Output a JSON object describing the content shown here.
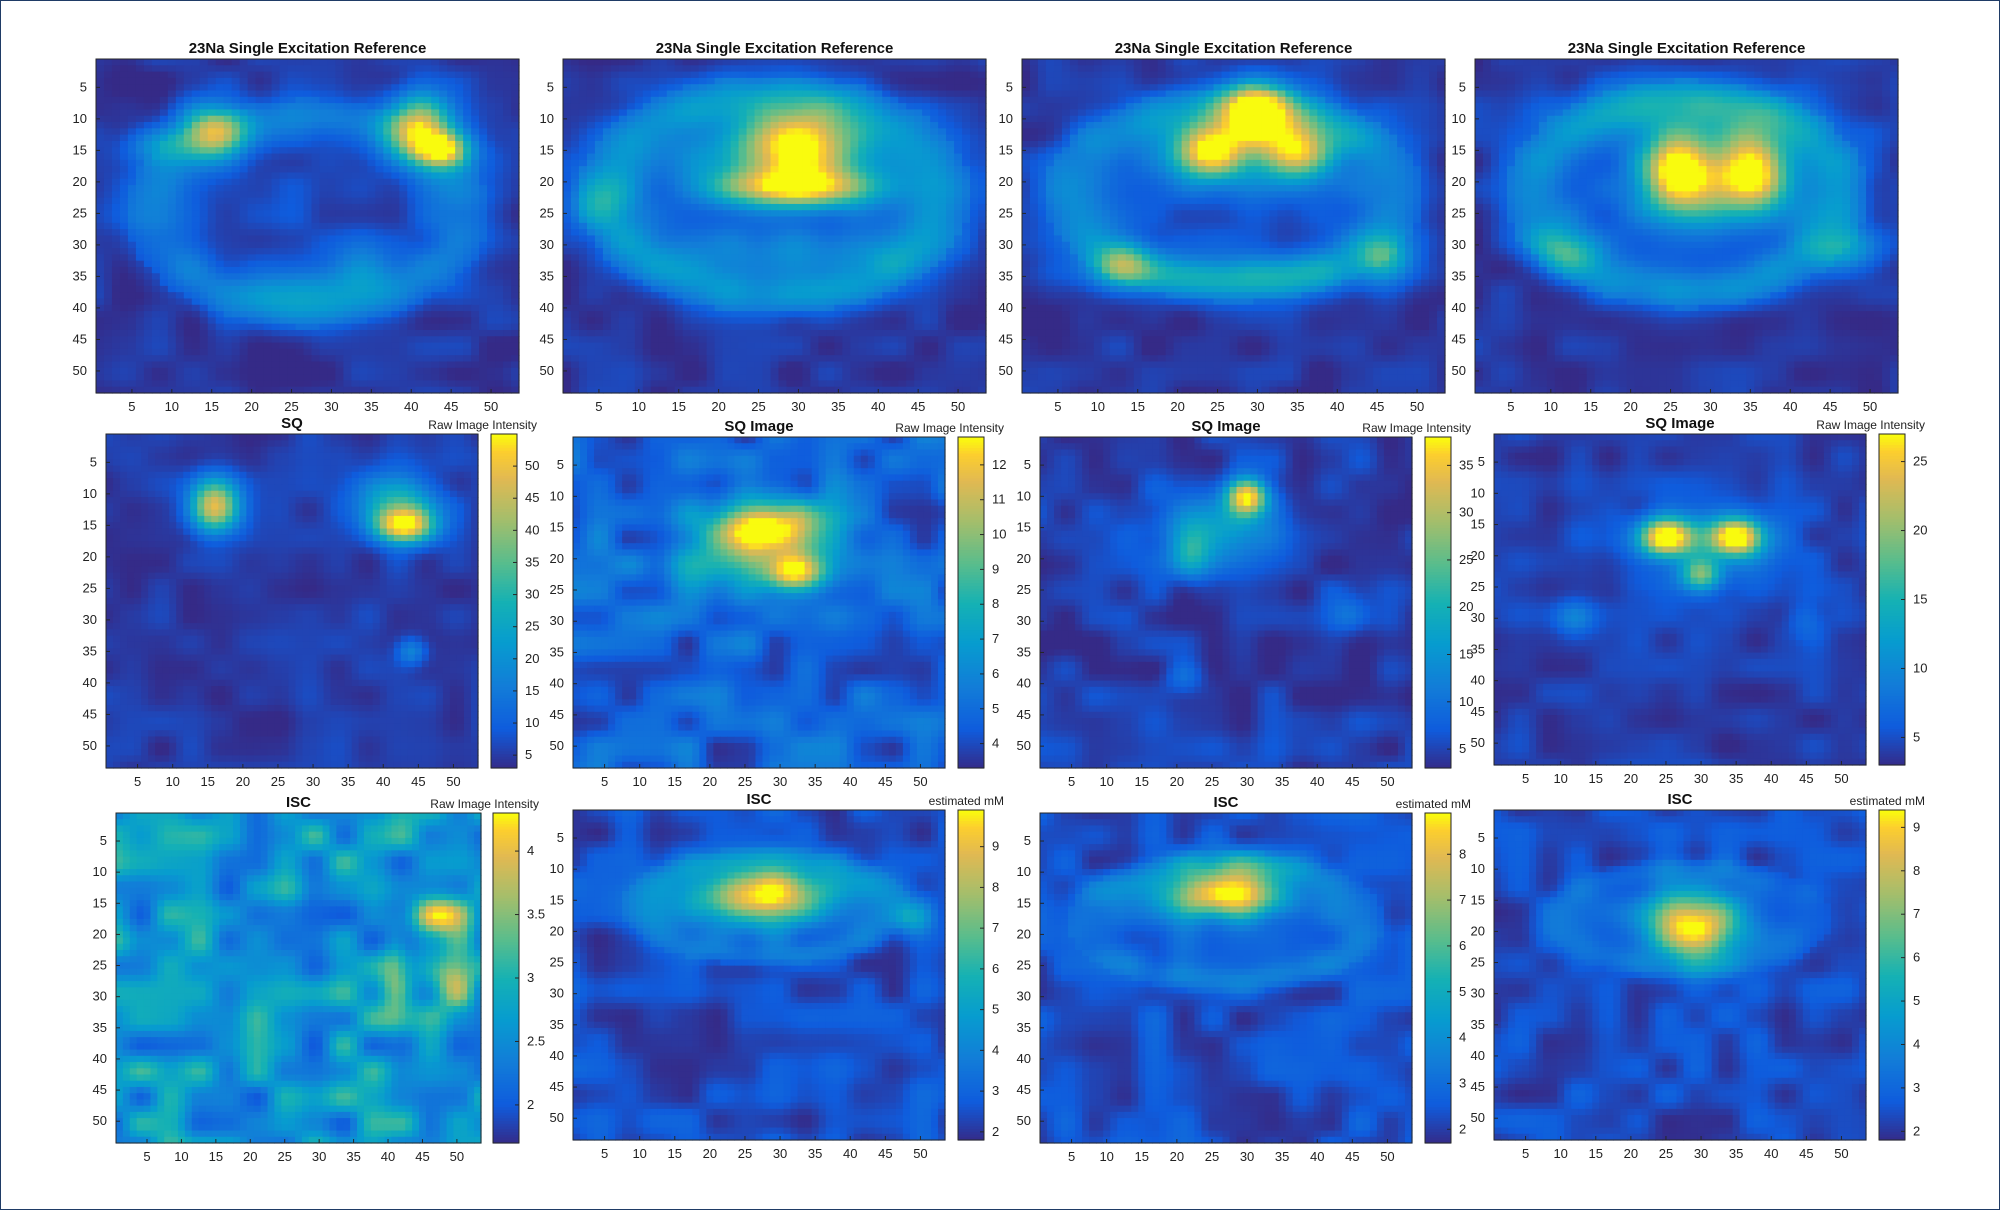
{
  "chart_data": [
    {
      "type": "heatmap",
      "title": "23Na Single Excitation Reference",
      "colorbar_label": "",
      "xticks": [
        5,
        10,
        15,
        20,
        25,
        30,
        35,
        40,
        45,
        50
      ],
      "yticks": [
        5,
        10,
        15,
        20,
        25,
        30,
        35,
        40,
        45,
        50
      ],
      "xlim": [
        1,
        53
      ],
      "ylim": [
        1,
        53
      ],
      "colormap": "parula"
    },
    {
      "type": "heatmap",
      "title": "23Na Single Excitation Reference",
      "colorbar_label": "",
      "xticks": [
        5,
        10,
        15,
        20,
        25,
        30,
        35,
        40,
        45,
        50
      ],
      "yticks": [
        5,
        10,
        15,
        20,
        25,
        30,
        35,
        40,
        45,
        50
      ],
      "xlim": [
        1,
        53
      ],
      "ylim": [
        1,
        53
      ],
      "colormap": "parula"
    },
    {
      "type": "heatmap",
      "title": "23Na Single Excitation Reference",
      "colorbar_label": "",
      "xticks": [
        5,
        10,
        15,
        20,
        25,
        30,
        35,
        40,
        45,
        50
      ],
      "yticks": [
        5,
        10,
        15,
        20,
        25,
        30,
        35,
        40,
        45,
        50
      ],
      "xlim": [
        1,
        53
      ],
      "ylim": [
        1,
        53
      ],
      "colormap": "parula"
    },
    {
      "type": "heatmap",
      "title": "23Na Single Excitation Reference",
      "colorbar_label": "",
      "xticks": [
        5,
        10,
        15,
        20,
        25,
        30,
        35,
        40,
        45,
        50
      ],
      "yticks": [
        5,
        10,
        15,
        20,
        25,
        30,
        35,
        40,
        45,
        50
      ],
      "xlim": [
        1,
        53
      ],
      "ylim": [
        1,
        53
      ],
      "colormap": "parula"
    },
    {
      "type": "heatmap",
      "title": "SQ",
      "colorbar_label": "Raw Image Intensity",
      "xticks": [
        5,
        10,
        15,
        20,
        25,
        30,
        35,
        40,
        45,
        50
      ],
      "yticks": [
        5,
        10,
        15,
        20,
        25,
        30,
        35,
        40,
        45,
        50
      ],
      "xlim": [
        1,
        53
      ],
      "ylim": [
        1,
        53
      ],
      "colormap": "parula",
      "clim": [
        3,
        55
      ],
      "colorbar_ticks": [
        5,
        10,
        15,
        20,
        25,
        30,
        35,
        40,
        45,
        50
      ]
    },
    {
      "type": "heatmap",
      "title": "SQ Image",
      "colorbar_label": "Raw Image Intensity",
      "xticks": [
        5,
        10,
        15,
        20,
        25,
        30,
        35,
        40,
        45,
        50
      ],
      "yticks": [
        5,
        10,
        15,
        20,
        25,
        30,
        35,
        40,
        45,
        50
      ],
      "xlim": [
        1,
        53
      ],
      "ylim": [
        1,
        53
      ],
      "colormap": "parula",
      "clim": [
        3.3,
        12.8
      ],
      "colorbar_ticks": [
        4,
        5,
        6,
        7,
        8,
        9,
        10,
        11,
        12
      ]
    },
    {
      "type": "heatmap",
      "title": "SQ Image",
      "colorbar_label": "Raw Image Intensity",
      "xticks": [
        5,
        10,
        15,
        20,
        25,
        30,
        35,
        40,
        45,
        50
      ],
      "yticks": [
        5,
        10,
        15,
        20,
        25,
        30,
        35,
        40,
        45,
        50
      ],
      "xlim": [
        1,
        53
      ],
      "ylim": [
        1,
        53
      ],
      "colormap": "parula",
      "clim": [
        3,
        38
      ],
      "colorbar_ticks": [
        5,
        10,
        15,
        20,
        25,
        30,
        35
      ]
    },
    {
      "type": "heatmap",
      "title": "SQ Image",
      "colorbar_label": "Raw Image Intensity",
      "xticks": [
        5,
        10,
        15,
        20,
        25,
        30,
        35,
        40,
        45,
        50
      ],
      "yticks": [
        5,
        10,
        15,
        20,
        25,
        30,
        35,
        40,
        45,
        50
      ],
      "xlim": [
        1,
        53
      ],
      "ylim": [
        1,
        53
      ],
      "colormap": "parula",
      "clim": [
        3,
        27
      ],
      "colorbar_ticks": [
        5,
        10,
        15,
        20,
        25
      ]
    },
    {
      "type": "heatmap",
      "title": "ISC",
      "colorbar_label": "Raw Image Intensity",
      "xticks": [
        5,
        10,
        15,
        20,
        25,
        30,
        35,
        40,
        45,
        50
      ],
      "yticks": [
        5,
        10,
        15,
        20,
        25,
        30,
        35,
        40,
        45,
        50
      ],
      "xlim": [
        1,
        53
      ],
      "ylim": [
        1,
        53
      ],
      "colormap": "parula",
      "clim": [
        1.7,
        4.3
      ],
      "colorbar_ticks": [
        2,
        2.5,
        3,
        3.5,
        4
      ]
    },
    {
      "type": "heatmap",
      "title": "ISC",
      "colorbar_label": "estimated mM",
      "xticks": [
        5,
        10,
        15,
        20,
        25,
        30,
        35,
        40,
        45,
        50
      ],
      "yticks": [
        5,
        10,
        15,
        20,
        25,
        30,
        35,
        40,
        45,
        50
      ],
      "xlim": [
        1,
        53
      ],
      "ylim": [
        1,
        53
      ],
      "colormap": "parula",
      "clim": [
        1.8,
        9.9
      ],
      "colorbar_ticks": [
        2,
        3,
        4,
        5,
        6,
        7,
        8,
        9
      ]
    },
    {
      "type": "heatmap",
      "title": "ISC",
      "colorbar_label": "estimated mM",
      "xticks": [
        5,
        10,
        15,
        20,
        25,
        30,
        35,
        40,
        45,
        50
      ],
      "yticks": [
        5,
        10,
        15,
        20,
        25,
        30,
        35,
        40,
        45,
        50
      ],
      "xlim": [
        1,
        53
      ],
      "ylim": [
        1,
        53
      ],
      "colormap": "parula",
      "clim": [
        1.7,
        8.9
      ],
      "colorbar_ticks": [
        2,
        3,
        4,
        5,
        6,
        7,
        8
      ]
    },
    {
      "type": "heatmap",
      "title": "ISC",
      "colorbar_label": "estimated mM",
      "xticks": [
        5,
        10,
        15,
        20,
        25,
        30,
        35,
        40,
        45,
        50
      ],
      "yticks": [
        5,
        10,
        15,
        20,
        25,
        30,
        35,
        40,
        45,
        50
      ],
      "xlim": [
        1,
        53
      ],
      "ylim": [
        1,
        53
      ],
      "colormap": "parula",
      "clim": [
        1.8,
        9.4
      ],
      "colorbar_ticks": [
        2,
        3,
        4,
        5,
        6,
        7,
        8,
        9
      ]
    }
  ]
}
